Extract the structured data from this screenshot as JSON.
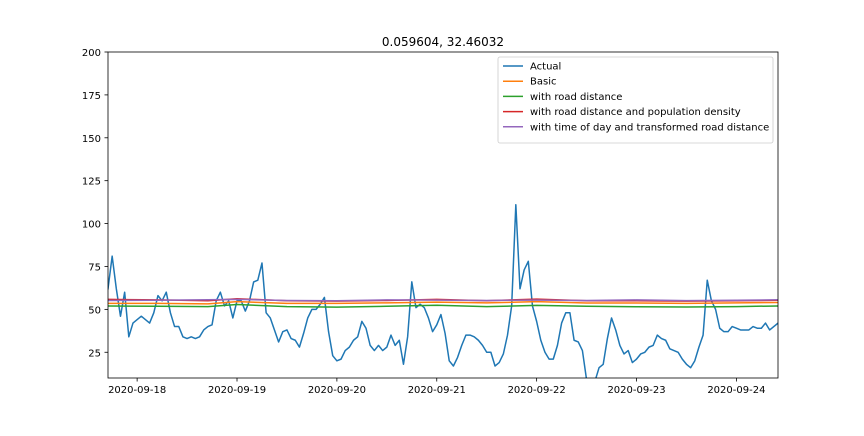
{
  "chart_data": {
    "type": "line",
    "title": "0.059604, 32.46032",
    "xlabel": "",
    "ylabel": "",
    "ylim": [
      10,
      200
    ],
    "xlim": [
      "2020-09-17T17:00",
      "2020-09-24T10:00"
    ],
    "yticks": [
      25,
      50,
      75,
      100,
      125,
      150,
      175,
      200
    ],
    "xticks": [
      "2020-09-18",
      "2020-09-19",
      "2020-09-20",
      "2020-09-21",
      "2020-09-22",
      "2020-09-23",
      "2020-09-24"
    ],
    "grid": false,
    "legend_position": "top-right",
    "series": [
      {
        "name": "Actual",
        "color": "#1f77b4",
        "points": [
          [
            "2020-09-17T17:00",
            62
          ],
          [
            "2020-09-17T18:00",
            81
          ],
          [
            "2020-09-17T19:00",
            62
          ],
          [
            "2020-09-17T20:00",
            46
          ],
          [
            "2020-09-17T21:00",
            60
          ],
          [
            "2020-09-17T22:00",
            34
          ],
          [
            "2020-09-17T23:00",
            42
          ],
          [
            "2020-09-18T01:00",
            46
          ],
          [
            "2020-09-18T03:00",
            42
          ],
          [
            "2020-09-18T04:00",
            48
          ],
          [
            "2020-09-18T05:00",
            58
          ],
          [
            "2020-09-18T06:00",
            55
          ],
          [
            "2020-09-18T07:00",
            60
          ],
          [
            "2020-09-18T08:00",
            48
          ],
          [
            "2020-09-18T09:00",
            40
          ],
          [
            "2020-09-18T10:00",
            40
          ],
          [
            "2020-09-18T11:00",
            34
          ],
          [
            "2020-09-18T12:00",
            33
          ],
          [
            "2020-09-18T13:00",
            34
          ],
          [
            "2020-09-18T14:00",
            33
          ],
          [
            "2020-09-18T15:00",
            34
          ],
          [
            "2020-09-18T16:00",
            38
          ],
          [
            "2020-09-18T17:00",
            40
          ],
          [
            "2020-09-18T18:00",
            41
          ],
          [
            "2020-09-18T19:00",
            55
          ],
          [
            "2020-09-18T20:00",
            60
          ],
          [
            "2020-09-18T21:00",
            52
          ],
          [
            "2020-09-18T22:00",
            55
          ],
          [
            "2020-09-18T23:00",
            45
          ],
          [
            "2020-09-19T00:00",
            55
          ],
          [
            "2020-09-19T01:00",
            55
          ],
          [
            "2020-09-19T02:00",
            49
          ],
          [
            "2020-09-19T03:00",
            55
          ],
          [
            "2020-09-19T04:00",
            66
          ],
          [
            "2020-09-19T05:00",
            67
          ],
          [
            "2020-09-19T06:00",
            77
          ],
          [
            "2020-09-19T07:00",
            48
          ],
          [
            "2020-09-19T08:00",
            45
          ],
          [
            "2020-09-19T09:00",
            38
          ],
          [
            "2020-09-19T10:00",
            31
          ],
          [
            "2020-09-19T11:00",
            37
          ],
          [
            "2020-09-19T12:00",
            38
          ],
          [
            "2020-09-19T13:00",
            33
          ],
          [
            "2020-09-19T14:00",
            32
          ],
          [
            "2020-09-19T15:00",
            28
          ],
          [
            "2020-09-19T16:00",
            36
          ],
          [
            "2020-09-19T17:00",
            45
          ],
          [
            "2020-09-19T18:00",
            50
          ],
          [
            "2020-09-19T19:00",
            50
          ],
          [
            "2020-09-19T20:00",
            53
          ],
          [
            "2020-09-19T21:00",
            57
          ],
          [
            "2020-09-19T22:00",
            37
          ],
          [
            "2020-09-19T23:00",
            23
          ],
          [
            "2020-09-20T00:00",
            20
          ],
          [
            "2020-09-20T01:00",
            21
          ],
          [
            "2020-09-20T02:00",
            26
          ],
          [
            "2020-09-20T03:00",
            28
          ],
          [
            "2020-09-20T04:00",
            32
          ],
          [
            "2020-09-20T05:00",
            34
          ],
          [
            "2020-09-20T06:00",
            43
          ],
          [
            "2020-09-20T07:00",
            39
          ],
          [
            "2020-09-20T08:00",
            29
          ],
          [
            "2020-09-20T09:00",
            26
          ],
          [
            "2020-09-20T10:00",
            29
          ],
          [
            "2020-09-20T11:00",
            26
          ],
          [
            "2020-09-20T12:00",
            28
          ],
          [
            "2020-09-20T13:00",
            35
          ],
          [
            "2020-09-20T14:00",
            29
          ],
          [
            "2020-09-20T15:00",
            32
          ],
          [
            "2020-09-20T16:00",
            18
          ],
          [
            "2020-09-20T17:00",
            34
          ],
          [
            "2020-09-20T18:00",
            66
          ],
          [
            "2020-09-20T19:00",
            51
          ],
          [
            "2020-09-20T20:00",
            53
          ],
          [
            "2020-09-20T21:00",
            51
          ],
          [
            "2020-09-20T22:00",
            45
          ],
          [
            "2020-09-20T23:00",
            37
          ],
          [
            "2020-09-21T00:00",
            41
          ],
          [
            "2020-09-21T01:00",
            47
          ],
          [
            "2020-09-21T02:00",
            36
          ],
          [
            "2020-09-21T03:00",
            20
          ],
          [
            "2020-09-21T04:00",
            17
          ],
          [
            "2020-09-21T05:00",
            22
          ],
          [
            "2020-09-21T06:00",
            29
          ],
          [
            "2020-09-21T07:00",
            35
          ],
          [
            "2020-09-21T08:00",
            35
          ],
          [
            "2020-09-21T09:00",
            34
          ],
          [
            "2020-09-21T10:00",
            32
          ],
          [
            "2020-09-21T11:00",
            29
          ],
          [
            "2020-09-21T12:00",
            25
          ],
          [
            "2020-09-21T13:00",
            25
          ],
          [
            "2020-09-21T14:00",
            17
          ],
          [
            "2020-09-21T15:00",
            19
          ],
          [
            "2020-09-21T16:00",
            24
          ],
          [
            "2020-09-21T17:00",
            35
          ],
          [
            "2020-09-21T18:00",
            52
          ],
          [
            "2020-09-21T19:00",
            111
          ],
          [
            "2020-09-21T20:00",
            62
          ],
          [
            "2020-09-21T21:00",
            73
          ],
          [
            "2020-09-21T22:00",
            78
          ],
          [
            "2020-09-21T23:00",
            52
          ],
          [
            "2020-09-22T00:00",
            43
          ],
          [
            "2020-09-22T01:00",
            32
          ],
          [
            "2020-09-22T02:00",
            25
          ],
          [
            "2020-09-22T03:00",
            21
          ],
          [
            "2020-09-22T04:00",
            21
          ],
          [
            "2020-09-22T05:00",
            29
          ],
          [
            "2020-09-22T06:00",
            42
          ],
          [
            "2020-09-22T07:00",
            48
          ],
          [
            "2020-09-22T08:00",
            48
          ],
          [
            "2020-09-22T09:00",
            32
          ],
          [
            "2020-09-22T10:00",
            31
          ],
          [
            "2020-09-22T11:00",
            26
          ],
          [
            "2020-09-22T12:00",
            9
          ],
          [
            "2020-09-22T13:00",
            6
          ],
          [
            "2020-09-22T14:00",
            8
          ],
          [
            "2020-09-22T15:00",
            16
          ],
          [
            "2020-09-22T16:00",
            18
          ],
          [
            "2020-09-22T17:00",
            33
          ],
          [
            "2020-09-22T18:00",
            45
          ],
          [
            "2020-09-22T19:00",
            38
          ],
          [
            "2020-09-22T20:00",
            29
          ],
          [
            "2020-09-22T21:00",
            24
          ],
          [
            "2020-09-22T22:00",
            26
          ],
          [
            "2020-09-22T23:00",
            19
          ],
          [
            "2020-09-23T00:00",
            21
          ],
          [
            "2020-09-23T01:00",
            24
          ],
          [
            "2020-09-23T02:00",
            25
          ],
          [
            "2020-09-23T03:00",
            28
          ],
          [
            "2020-09-23T04:00",
            29
          ],
          [
            "2020-09-23T05:00",
            35
          ],
          [
            "2020-09-23T06:00",
            33
          ],
          [
            "2020-09-23T07:00",
            32
          ],
          [
            "2020-09-23T08:00",
            27
          ],
          [
            "2020-09-23T09:00",
            26
          ],
          [
            "2020-09-23T10:00",
            25
          ],
          [
            "2020-09-23T11:00",
            21
          ],
          [
            "2020-09-23T12:00",
            18
          ],
          [
            "2020-09-23T13:00",
            16
          ],
          [
            "2020-09-23T14:00",
            20
          ],
          [
            "2020-09-23T15:00",
            28
          ],
          [
            "2020-09-23T16:00",
            35
          ],
          [
            "2020-09-23T17:00",
            67
          ],
          [
            "2020-09-23T18:00",
            55
          ],
          [
            "2020-09-23T19:00",
            50
          ],
          [
            "2020-09-23T20:00",
            39
          ],
          [
            "2020-09-23T21:00",
            37
          ],
          [
            "2020-09-23T22:00",
            37
          ],
          [
            "2020-09-23T23:00",
            40
          ],
          [
            "2020-09-24T00:00",
            39
          ],
          [
            "2020-09-24T01:00",
            38
          ],
          [
            "2020-09-24T02:00",
            38
          ],
          [
            "2020-09-24T03:00",
            38
          ],
          [
            "2020-09-24T04:00",
            40
          ],
          [
            "2020-09-24T05:00",
            39
          ],
          [
            "2020-09-24T06:00",
            39
          ],
          [
            "2020-09-24T07:00",
            42
          ],
          [
            "2020-09-24T08:00",
            38
          ],
          [
            "2020-09-24T10:00",
            42
          ]
        ]
      },
      {
        "name": "Basic",
        "color": "#ff7f0e",
        "points": [
          [
            "2020-09-17T17:00",
            53.5
          ],
          [
            "2020-09-18T05:00",
            53.5
          ],
          [
            "2020-09-18T17:00",
            53.2
          ],
          [
            "2020-09-19T00:00",
            54.5
          ],
          [
            "2020-09-19T12:00",
            53.5
          ],
          [
            "2020-09-20T00:00",
            53.5
          ],
          [
            "2020-09-20T12:00",
            53.8
          ],
          [
            "2020-09-21T00:00",
            54.2
          ],
          [
            "2020-09-21T12:00",
            53.8
          ],
          [
            "2020-09-22T00:00",
            54.5
          ],
          [
            "2020-09-22T12:00",
            53.7
          ],
          [
            "2020-09-23T00:00",
            53.7
          ],
          [
            "2020-09-23T12:00",
            53.5
          ],
          [
            "2020-09-24T00:00",
            53.8
          ],
          [
            "2020-09-24T10:00",
            54
          ]
        ]
      },
      {
        "name": "with road distance",
        "color": "#2ca02c",
        "points": [
          [
            "2020-09-17T17:00",
            52
          ],
          [
            "2020-09-18T05:00",
            51.8
          ],
          [
            "2020-09-18T17:00",
            51.6
          ],
          [
            "2020-09-19T00:00",
            52.8
          ],
          [
            "2020-09-19T12:00",
            51.6
          ],
          [
            "2020-09-20T00:00",
            51.3
          ],
          [
            "2020-09-20T12:00",
            51.8
          ],
          [
            "2020-09-21T00:00",
            52.4
          ],
          [
            "2020-09-21T12:00",
            51.6
          ],
          [
            "2020-09-22T00:00",
            52.3
          ],
          [
            "2020-09-22T12:00",
            51.8
          ],
          [
            "2020-09-23T00:00",
            51.5
          ],
          [
            "2020-09-23T12:00",
            51.4
          ],
          [
            "2020-09-24T00:00",
            51.6
          ],
          [
            "2020-09-24T10:00",
            52
          ]
        ]
      },
      {
        "name": "with road distance and population density",
        "color": "#d62728",
        "points": [
          [
            "2020-09-17T17:00",
            55.8
          ],
          [
            "2020-09-18T05:00",
            55.5
          ],
          [
            "2020-09-18T17:00",
            55
          ],
          [
            "2020-09-19T00:00",
            56.2
          ],
          [
            "2020-09-19T12:00",
            55
          ],
          [
            "2020-09-20T00:00",
            54.8
          ],
          [
            "2020-09-20T12:00",
            55.2
          ],
          [
            "2020-09-21T00:00",
            55.8
          ],
          [
            "2020-09-21T12:00",
            55
          ],
          [
            "2020-09-22T00:00",
            56
          ],
          [
            "2020-09-22T12:00",
            55
          ],
          [
            "2020-09-23T00:00",
            55
          ],
          [
            "2020-09-23T12:00",
            54.8
          ],
          [
            "2020-09-24T00:00",
            55
          ],
          [
            "2020-09-24T10:00",
            55.3
          ]
        ]
      },
      {
        "name": "with time of day and transformed road distance",
        "color": "#9467bd",
        "points": [
          [
            "2020-09-17T17:00",
            55.2
          ],
          [
            "2020-09-18T05:00",
            55.3
          ],
          [
            "2020-09-18T17:00",
            55.6
          ],
          [
            "2020-09-19T00:00",
            55.8
          ],
          [
            "2020-09-19T12:00",
            55.2
          ],
          [
            "2020-09-20T00:00",
            55
          ],
          [
            "2020-09-20T12:00",
            55.5
          ],
          [
            "2020-09-21T00:00",
            55.4
          ],
          [
            "2020-09-21T12:00",
            55.2
          ],
          [
            "2020-09-22T00:00",
            55.4
          ],
          [
            "2020-09-22T12:00",
            55.2
          ],
          [
            "2020-09-23T00:00",
            55.5
          ],
          [
            "2020-09-23T12:00",
            55.1
          ],
          [
            "2020-09-24T00:00",
            55.3
          ],
          [
            "2020-09-24T10:00",
            55.6
          ]
        ]
      }
    ]
  }
}
